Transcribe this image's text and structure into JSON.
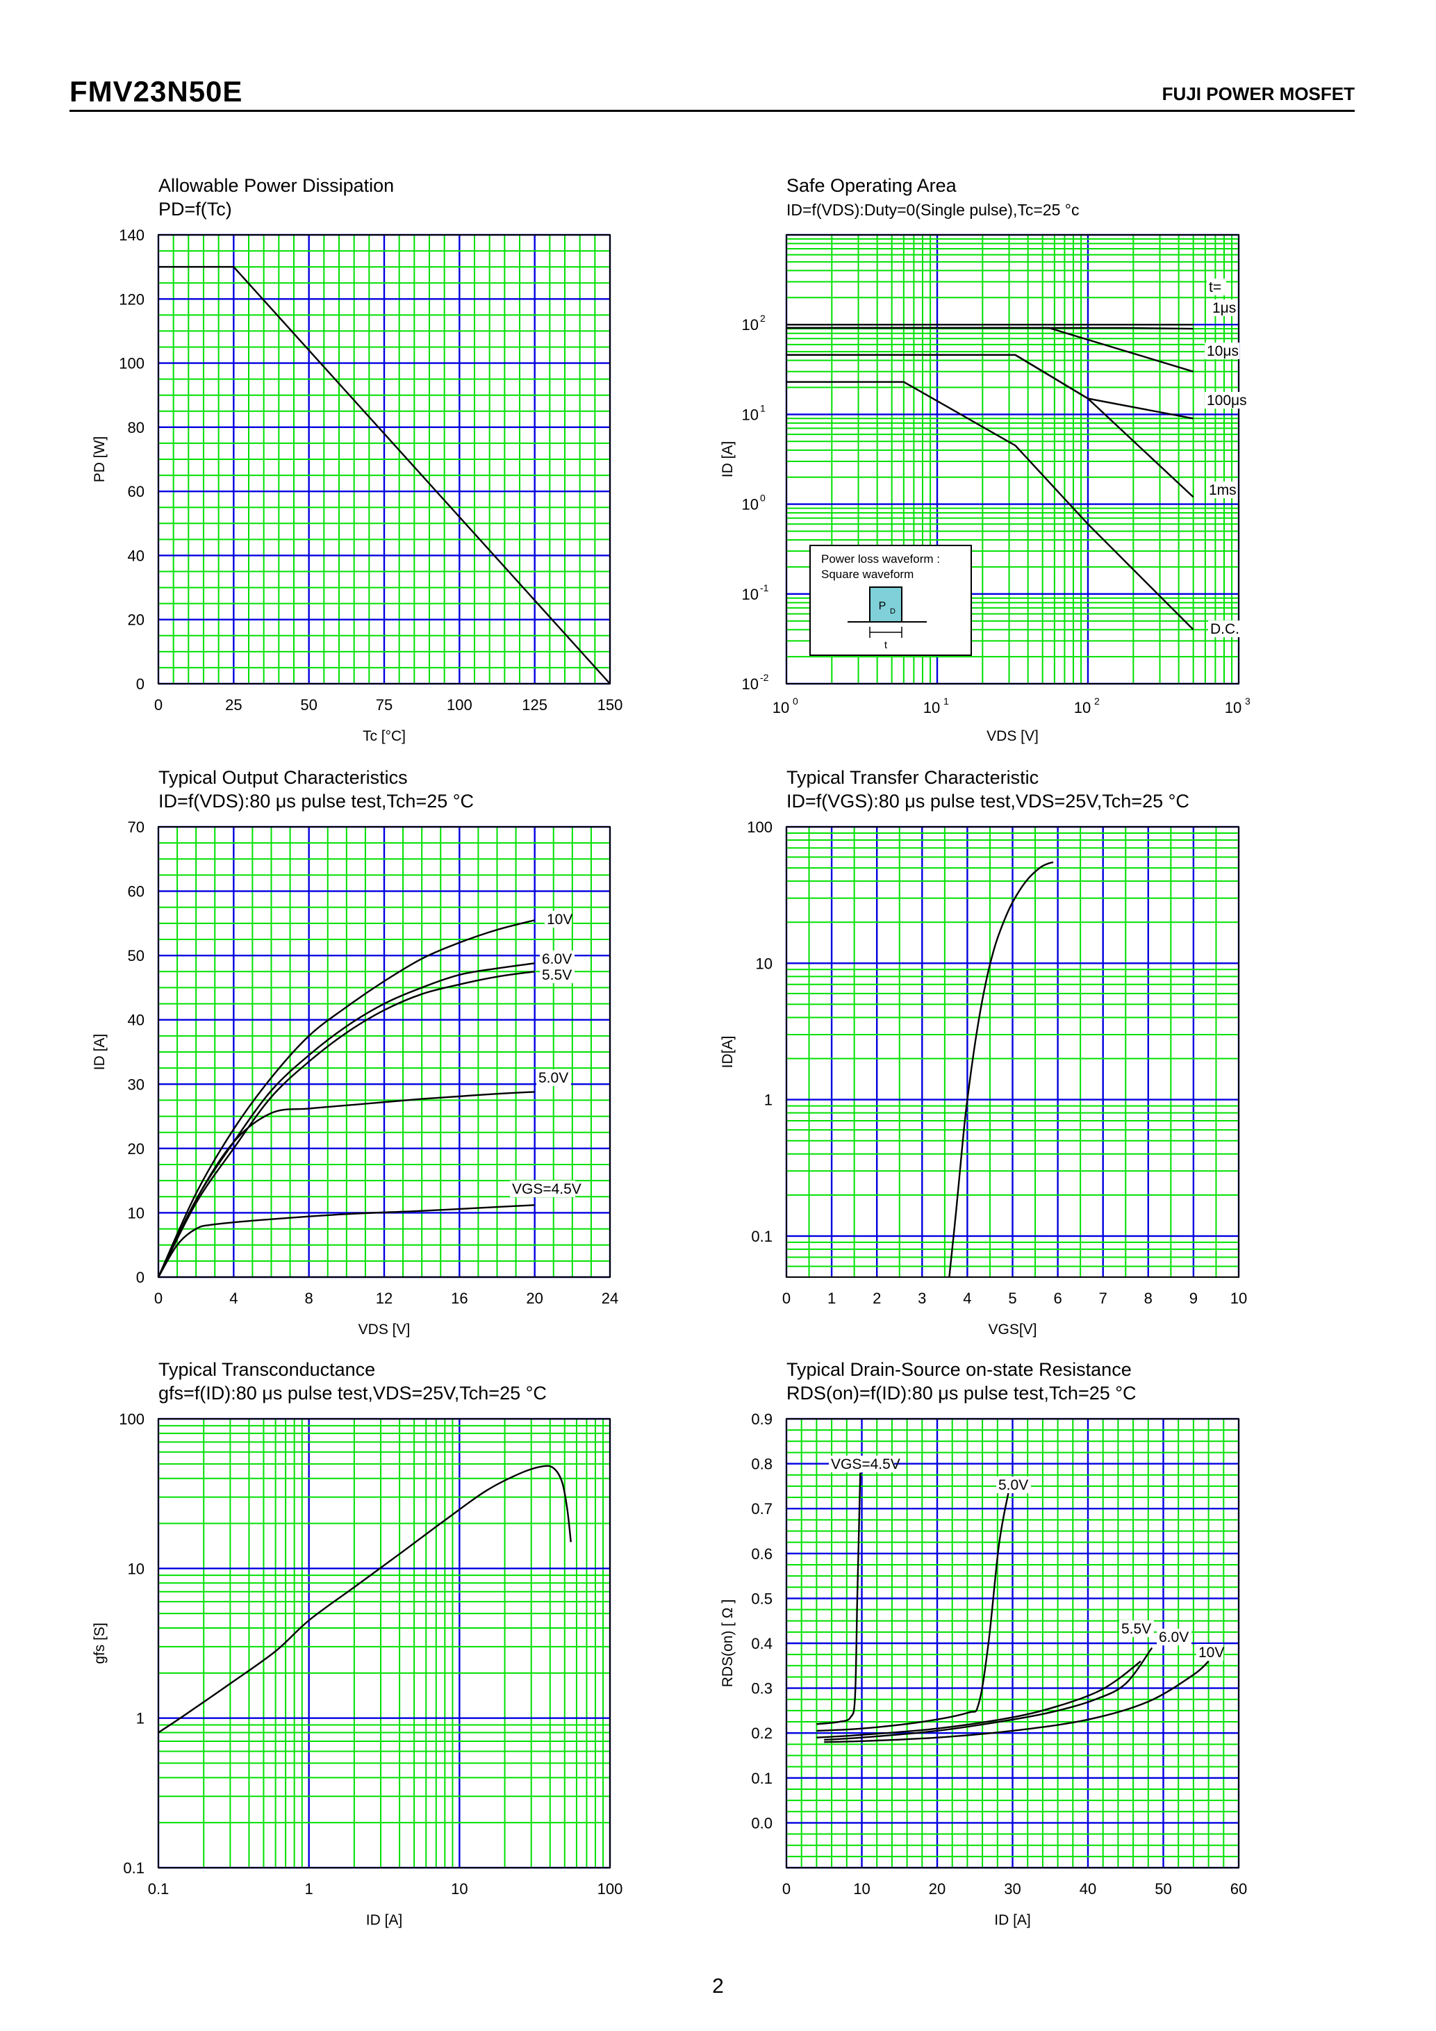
{
  "header": {
    "part_number": "FMV23N50E",
    "brand": "FUJI POWER MOSFET"
  },
  "footer": {
    "page_number": "2"
  },
  "colors": {
    "minor_grid": "#00e000",
    "major_grid": "#0000e0",
    "curve": "#000000",
    "axes": "#000000",
    "waveform_box": "#7fd0d8"
  },
  "chart_data": [
    {
      "type": "line",
      "title": "Allowable Power Dissipation",
      "subtitle": "PD=f(Tc)",
      "xlabel": "Tc [°C]",
      "ylabel": "PD [W]",
      "xscale": "linear",
      "yscale": "linear",
      "xlim": [
        0,
        150
      ],
      "ylim": [
        0,
        140
      ],
      "xticks": [
        0,
        25,
        50,
        75,
        100,
        125,
        150
      ],
      "yticks": [
        0,
        20,
        40,
        60,
        80,
        100,
        120,
        140
      ],
      "grid": true,
      "series": [
        {
          "x": [
            0,
            25,
            150
          ],
          "y": [
            130,
            130,
            0
          ]
        }
      ],
      "annotations": []
    },
    {
      "type": "line",
      "title": "Safe Operating Area",
      "subtitle": "ID=f(VDS):Duty=0(Single pulse),Tc=25 °c",
      "xlabel": "VDS [V]",
      "ylabel": "ID [A]",
      "xscale": "log",
      "yscale": "log",
      "xlim": [
        1,
        1000
      ],
      "ylim": [
        0.01,
        1000
      ],
      "xtick_exponents": [
        "0",
        "1",
        "2",
        "3"
      ],
      "ytick_exponents": [
        "-2",
        "-1",
        "0",
        "1",
        "2"
      ],
      "ytick_values": [
        0.01,
        0.1,
        1,
        10,
        100
      ],
      "grid": true,
      "series": [
        {
          "name": "t=",
          "x": [
            1,
            500
          ],
          "y": [
            100,
            100
          ]
        },
        {
          "name": "1μs",
          "x": [
            1,
            175,
            500
          ],
          "y": [
            92,
            92,
            90
          ]
        },
        {
          "name": "10μs",
          "x": [
            1,
            55,
            500
          ],
          "y": [
            92,
            92,
            30
          ]
        },
        {
          "name": "100μs",
          "x": [
            1,
            33,
            100,
            500
          ],
          "y": [
            46,
            46,
            15,
            9
          ]
        },
        {
          "name": "1ms",
          "x": [
            1,
            33,
            100,
            500
          ],
          "y": [
            46,
            46,
            15,
            1.2
          ]
        },
        {
          "name": "D.C.",
          "x": [
            1,
            6,
            33,
            100,
            500
          ],
          "y": [
            23,
            23,
            4.5,
            0.6,
            0.04
          ]
        }
      ],
      "inset": {
        "line1": "Power loss waveform :",
        "line2": "Square waveform",
        "pulse_label": "P",
        "pulse_sub": "D",
        "time_label": "t"
      }
    },
    {
      "type": "line",
      "title": "Typical Output Characteristics",
      "subtitle": "ID=f(VDS):80 μs pulse test,Tch=25 °C",
      "xlabel": "VDS [V]",
      "ylabel": "ID [A]",
      "xscale": "linear",
      "yscale": "linear",
      "xlim": [
        0,
        24
      ],
      "ylim": [
        0,
        70
      ],
      "xticks": [
        0,
        4,
        8,
        12,
        16,
        20,
        24
      ],
      "yticks": [
        0,
        10,
        20,
        30,
        40,
        50,
        60,
        70
      ],
      "grid": true,
      "series": [
        {
          "name": "10V",
          "x": [
            0,
            2,
            4,
            6,
            8,
            10,
            12,
            14,
            16,
            18,
            20
          ],
          "y": [
            0,
            13,
            23,
            31,
            37.5,
            42,
            46,
            49.5,
            52,
            54,
            55.5
          ]
        },
        {
          "name": "6.0V",
          "x": [
            0,
            2,
            4,
            6,
            8,
            10,
            12,
            14,
            16,
            18,
            20
          ],
          "y": [
            0,
            12,
            21,
            29,
            34.5,
            39,
            42.5,
            45,
            47,
            48,
            48.8
          ]
        },
        {
          "name": "5.5V",
          "x": [
            0,
            2,
            4,
            6,
            8,
            10,
            12,
            14,
            16,
            18,
            20
          ],
          "y": [
            0,
            11.5,
            20,
            28,
            33.5,
            38,
            41.5,
            44,
            45.5,
            46.7,
            47.5
          ]
        },
        {
          "name": "5.0V",
          "x": [
            0,
            2,
            4,
            6,
            8,
            10,
            12,
            14,
            16,
            18,
            20
          ],
          "y": [
            0,
            12,
            21,
            25.5,
            26.2,
            26.7,
            27.2,
            27.7,
            28.1,
            28.5,
            28.8
          ]
        },
        {
          "name": "VGS=4.5V",
          "x": [
            0,
            1,
            2,
            3,
            6,
            10,
            14,
            18,
            20
          ],
          "y": [
            0,
            5,
            7.5,
            8.2,
            9,
            9.8,
            10.3,
            10.9,
            11.2
          ]
        }
      ]
    },
    {
      "type": "line",
      "title": "Typical Transfer Characteristic",
      "subtitle": "ID=f(VGS):80 μs pulse test,VDS=25V,Tch=25 °C",
      "xlabel": "VGS[V]",
      "ylabel": "ID[A]",
      "xscale": "linear",
      "yscale": "log",
      "xlim": [
        0,
        10
      ],
      "ylim": [
        0.05,
        100
      ],
      "xticks": [
        0,
        1,
        2,
        3,
        4,
        5,
        6,
        7,
        8,
        9,
        10
      ],
      "ytick_labels": [
        "0.1",
        "1",
        "10",
        "100"
      ],
      "ytick_values": [
        0.1,
        1,
        10,
        100
      ],
      "grid": true,
      "series": [
        {
          "x": [
            3.6,
            3.75,
            3.9,
            4.0,
            4.2,
            4.4,
            4.6,
            4.8,
            5.0,
            5.3,
            5.6,
            5.8,
            5.9
          ],
          "y": [
            0.05,
            0.15,
            0.5,
            1,
            3,
            7,
            13,
            20,
            28,
            40,
            50,
            54,
            55
          ]
        }
      ]
    },
    {
      "type": "line",
      "title": "Typical Transconductance",
      "subtitle": "gfs=f(ID):80 μs pulse test,VDS=25V,Tch=25 °C",
      "xlabel": "ID [A]",
      "ylabel": "gfs [S]",
      "xscale": "log",
      "yscale": "log",
      "xlim": [
        0.1,
        100
      ],
      "ylim": [
        0.1,
        100
      ],
      "xtick_labels": [
        "0.1",
        "1",
        "10",
        "100"
      ],
      "xtick_values": [
        0.1,
        1,
        10,
        100
      ],
      "ytick_labels": [
        "0.1",
        "1",
        "10",
        "100"
      ],
      "ytick_values": [
        0.1,
        1,
        10,
        100
      ],
      "grid": true,
      "series": [
        {
          "x": [
            0.1,
            0.15,
            0.3,
            0.6,
            1,
            2,
            4,
            8,
            15,
            25,
            35,
            42,
            48,
            52,
            55
          ],
          "y": [
            0.8,
            1.05,
            1.7,
            2.8,
            4.5,
            7.5,
            12.5,
            21,
            33,
            43,
            48,
            47,
            38,
            25,
            15
          ]
        }
      ]
    },
    {
      "type": "line",
      "title": "Typical Drain-Source on-state Resistance",
      "subtitle": "RDS(on)=f(ID):80 μs pulse test,Tch=25 °C",
      "xlabel": "ID [A]",
      "ylabel": "RDS(on) [ Ω ]",
      "xscale": "linear",
      "yscale": "linear",
      "xlim": [
        0,
        60
      ],
      "ylim": [
        -0.1,
        0.9
      ],
      "xticks": [
        0,
        10,
        20,
        30,
        40,
        50,
        60
      ],
      "ytick_labels": [
        "0.0",
        "0.1",
        "0.2",
        "0.3",
        "0.4",
        "0.5",
        "0.6",
        "0.7",
        "0.8",
        "0.9"
      ],
      "ytick_values": [
        0,
        0.1,
        0.2,
        0.3,
        0.4,
        0.5,
        0.6,
        0.7,
        0.8,
        0.9
      ],
      "grid": true,
      "series": [
        {
          "name": "VGS=4.5V",
          "x": [
            4,
            7,
            8.5,
            9.1,
            9.4,
            9.8
          ],
          "y": [
            0.22,
            0.225,
            0.235,
            0.28,
            0.5,
            0.78
          ]
        },
        {
          "name": "5.0V",
          "x": [
            4,
            10,
            18,
            24,
            25.5,
            26.8,
            28.2,
            29.5
          ],
          "y": [
            0.205,
            0.21,
            0.225,
            0.245,
            0.265,
            0.4,
            0.62,
            0.74
          ]
        },
        {
          "name": "5.5V",
          "x": [
            4,
            10,
            20,
            30,
            36,
            41,
            44,
            47
          ],
          "y": [
            0.19,
            0.196,
            0.21,
            0.235,
            0.26,
            0.29,
            0.32,
            0.36
          ]
        },
        {
          "name": "6.0V",
          "x": [
            5,
            10,
            20,
            30,
            36,
            41,
            45,
            48.5
          ],
          "y": [
            0.185,
            0.19,
            0.205,
            0.23,
            0.25,
            0.275,
            0.31,
            0.39
          ]
        },
        {
          "name": "10V",
          "x": [
            5,
            10,
            20,
            30,
            40,
            48,
            54,
            56
          ],
          "y": [
            0.18,
            0.182,
            0.19,
            0.205,
            0.23,
            0.27,
            0.33,
            0.36
          ]
        }
      ]
    }
  ]
}
